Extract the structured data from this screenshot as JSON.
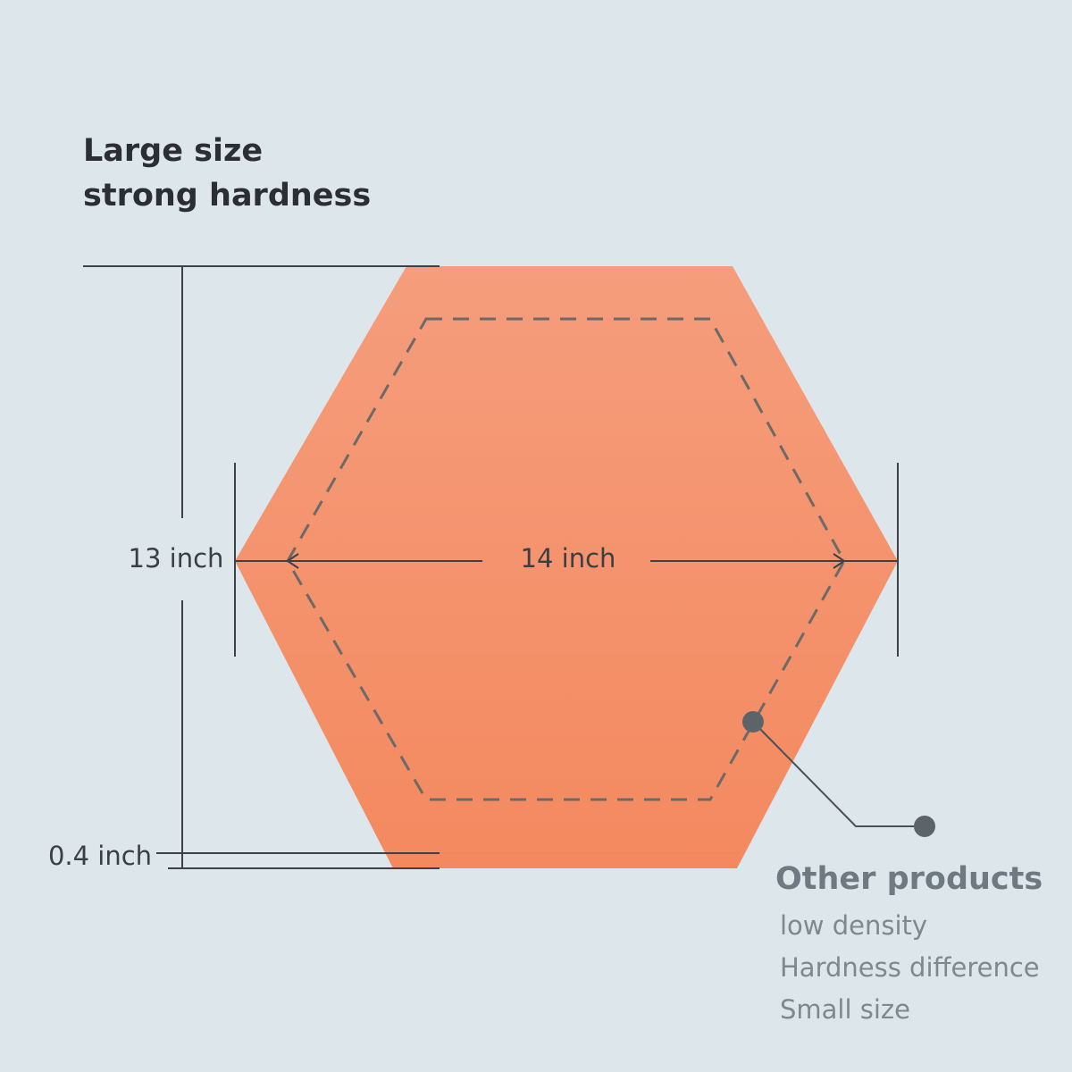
{
  "title": {
    "line1": "Large size",
    "line2": "strong hardness"
  },
  "dimensions": {
    "height": "13 inch",
    "width": "14 inch",
    "thickness": "0.4 inch"
  },
  "comparison": {
    "heading": "Other products",
    "items": [
      "low density",
      "Hardness difference",
      "Small size"
    ]
  }
}
